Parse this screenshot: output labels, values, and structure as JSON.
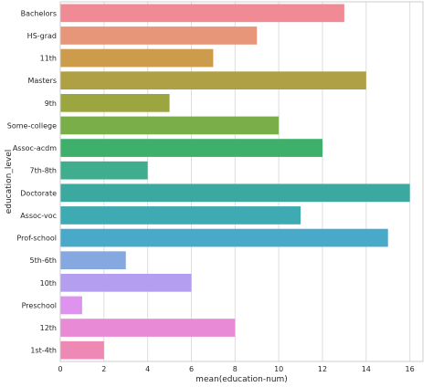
{
  "chart_data": {
    "type": "bar",
    "orientation": "horizontal",
    "categories": [
      "Bachelors",
      "HS-grad",
      "11th",
      "Masters",
      "9th",
      "Some-college",
      "Assoc-acdm",
      "7th-8th",
      "Doctorate",
      "Assoc-voc",
      "Prof-school",
      "5th-6th",
      "10th",
      "Preschool",
      "12th",
      "1st-4th"
    ],
    "values": [
      13,
      9,
      7,
      14,
      5,
      10,
      12,
      4,
      16,
      11,
      15,
      3,
      6,
      1,
      8,
      2
    ],
    "colors": [
      "#f08b95",
      "#e8967a",
      "#cc9b4c",
      "#b0a045",
      "#9ca63f",
      "#79ae48",
      "#3faf6c",
      "#3fae8e",
      "#3ba99f",
      "#3eaab2",
      "#49a9c9",
      "#86a8e0",
      "#b39ef0",
      "#de93ef",
      "#e98ad6",
      "#ee89b6"
    ],
    "xlabel": "mean(education-num)",
    "ylabel": "education_level",
    "xlim": [
      0,
      16.6
    ],
    "xticks": [
      0,
      2,
      4,
      6,
      8,
      10,
      12,
      14,
      16
    ],
    "grid": "vertical"
  }
}
